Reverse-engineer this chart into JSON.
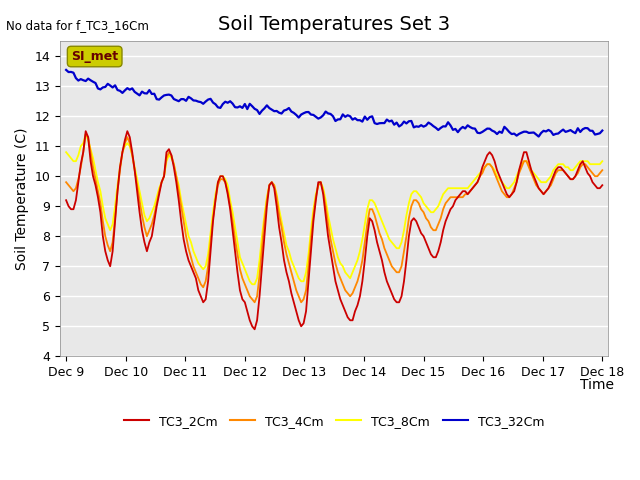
{
  "title": "Soil Temperatures Set 3",
  "no_data_text": "No data for f_TC3_16Cm",
  "ylabel": "Soil Temperature (C)",
  "xlabel": "Time",
  "ylim": [
    4.0,
    14.5
  ],
  "yticks": [
    4.0,
    5.0,
    6.0,
    7.0,
    8.0,
    9.0,
    10.0,
    11.0,
    12.0,
    13.0,
    14.0
  ],
  "xtick_labels": [
    "Dec 9",
    "Dec 10",
    "Dec 11",
    "Dec 12",
    "Dec 13",
    "Dec 14",
    "Dec 15",
    "Dec 16",
    "Dec 17",
    "Dec 18"
  ],
  "series_colors": {
    "TC3_2Cm": "#cc0000",
    "TC3_4Cm": "#ff8800",
    "TC3_8Cm": "#ffff00",
    "TC3_32Cm": "#0000cc"
  },
  "legend_labels": [
    "TC3_2Cm",
    "TC3_4Cm",
    "TC3_8Cm",
    "TC3_32Cm"
  ],
  "annotation_box": "SI_met",
  "annotation_box_color": "#cccc00",
  "background_color": "#e8e8e8",
  "grid_color": "#ffffff",
  "title_fontsize": 14,
  "label_fontsize": 10,
  "tick_fontsize": 9
}
